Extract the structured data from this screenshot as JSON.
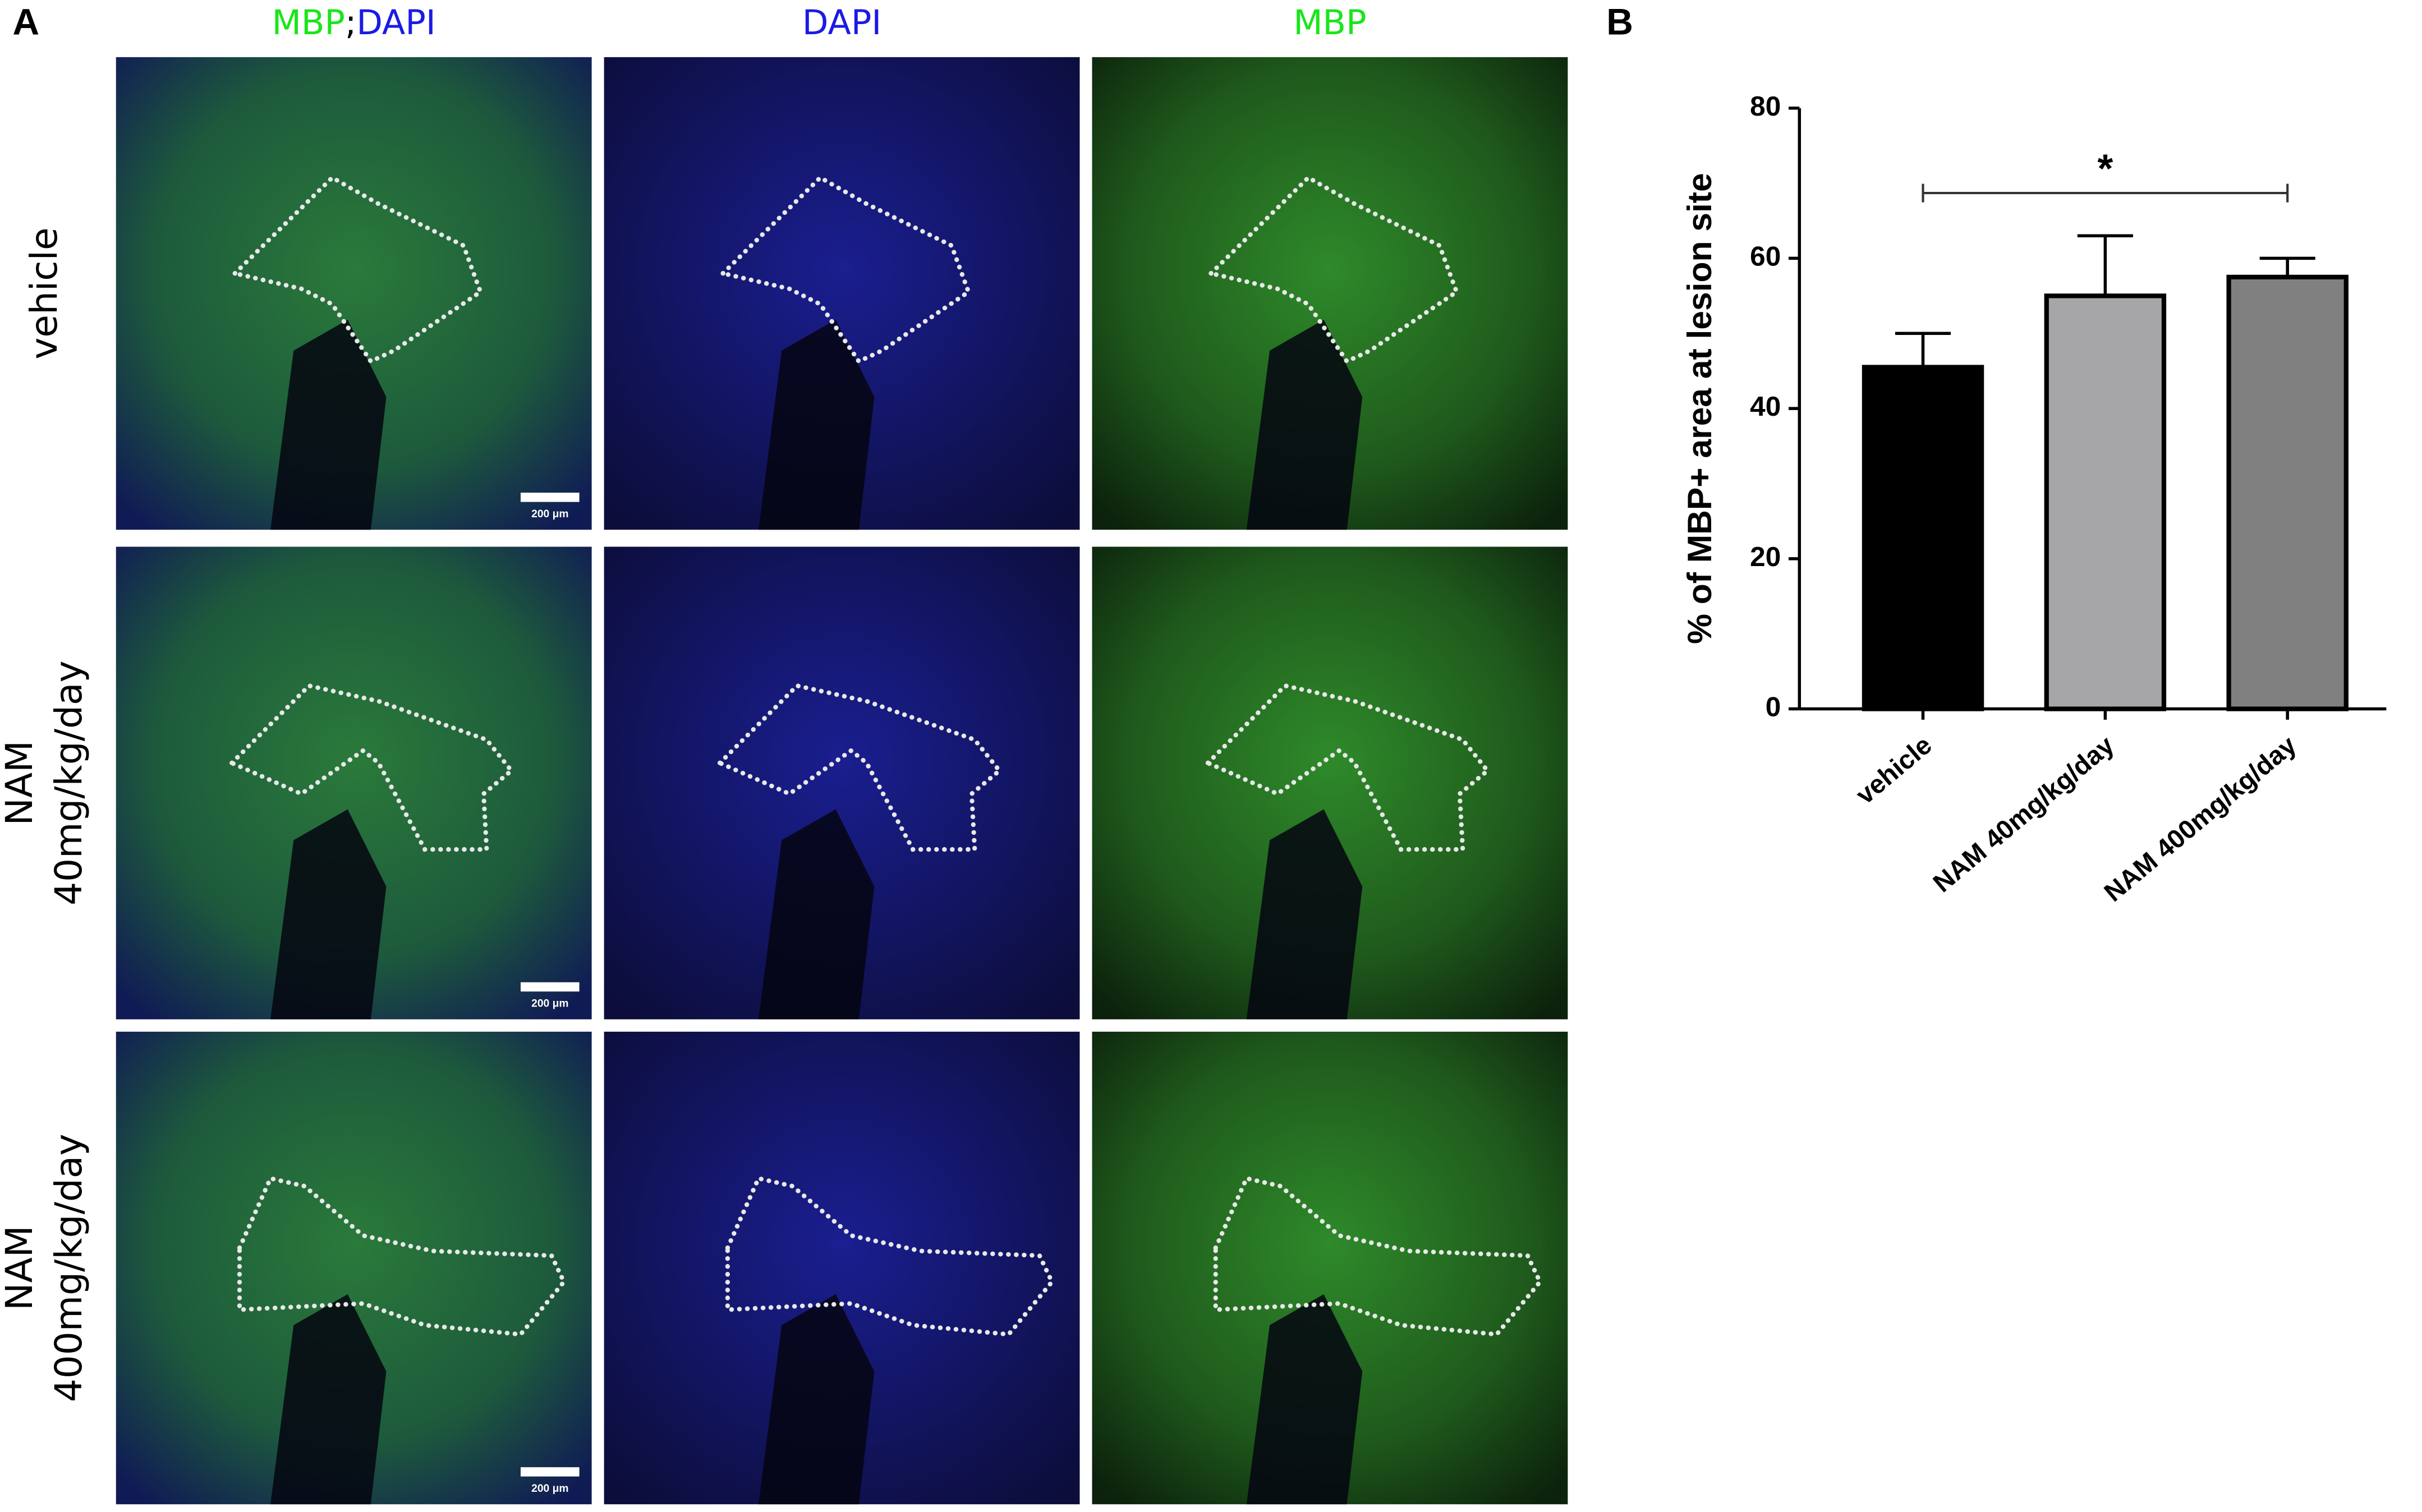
{
  "panel_labels": [
    "A",
    "B"
  ],
  "image_grid": {
    "column_headers": [
      {
        "parts": [
          {
            "text": "MBP",
            "color": "#19e619"
          },
          {
            "text": ";",
            "color": "#000000"
          },
          {
            "text": "DAPI",
            "color": "#1a1ae6"
          }
        ]
      },
      {
        "parts": [
          {
            "text": "DAPI",
            "color": "#1a1ae6"
          }
        ]
      },
      {
        "parts": [
          {
            "text": "MBP",
            "color": "#19e619"
          }
        ]
      }
    ],
    "row_labels": [
      [
        "vehicle"
      ],
      [
        "NAM",
        "40mg/kg/day"
      ],
      [
        "NAM",
        "400mg/kg/day"
      ]
    ],
    "scale_bar_label": "200 μm"
  },
  "chart_data": {
    "type": "bar",
    "ylabel": "% of MBP+ area at lesion site",
    "categories": [
      "vehicle",
      "NAM 40mg/kg/day",
      "NAM 400mg/kg/day"
    ],
    "values": [
      45.5,
      55,
      57.5
    ],
    "errors": [
      4.5,
      8,
      2.5
    ],
    "colors": [
      "#000000",
      "#a6a6a8",
      "#808080"
    ],
    "ylim": [
      0,
      80
    ],
    "yticks": [
      0,
      20,
      40,
      60,
      80
    ],
    "significance": {
      "label": "*",
      "between": [
        0,
        2
      ]
    }
  }
}
